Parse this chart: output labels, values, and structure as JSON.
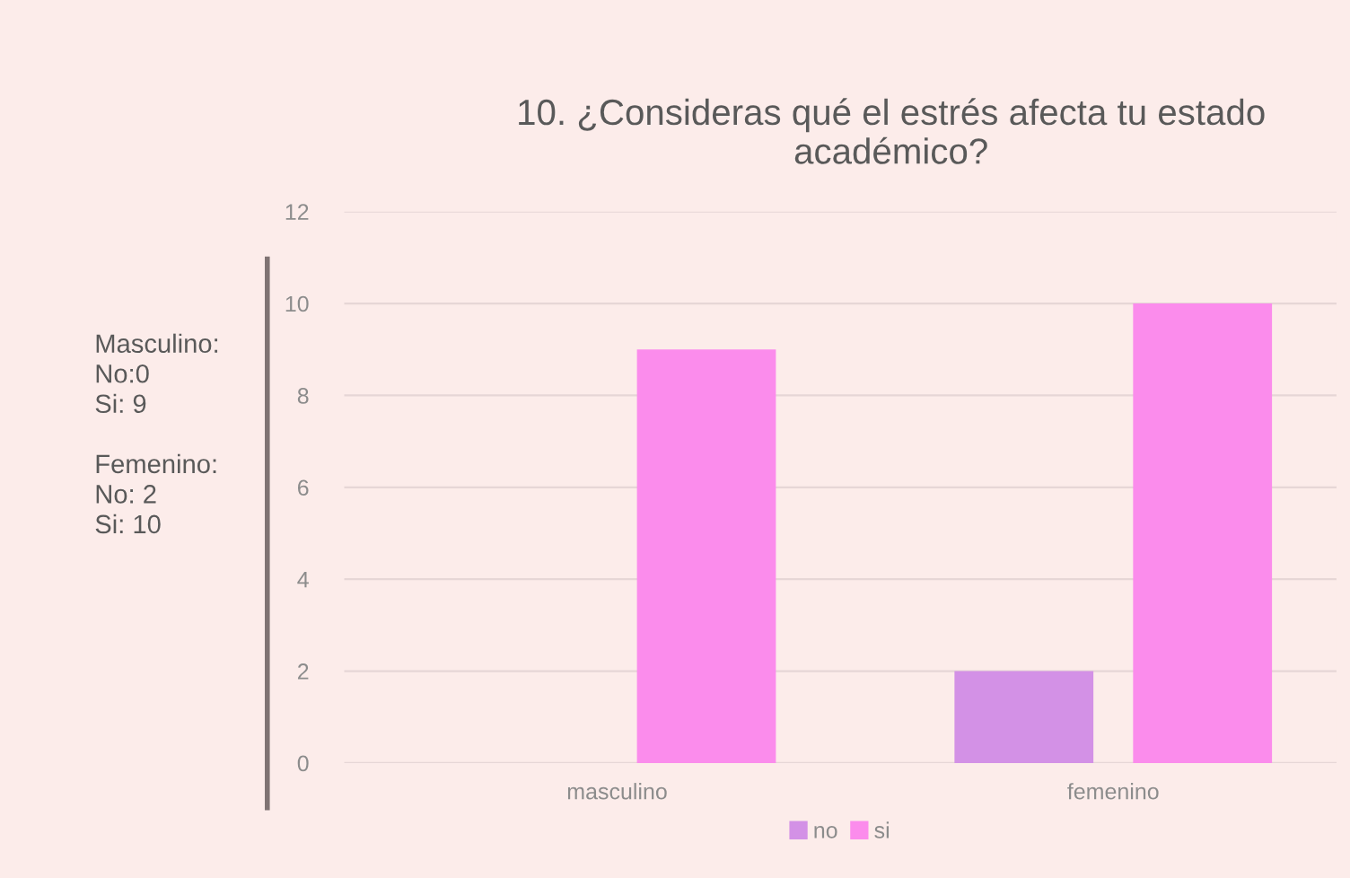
{
  "chart_data": {
    "type": "bar",
    "title": "10. ¿Consideras qué el estrés afecta tu estado\nacadémico?",
    "categories": [
      "masculino",
      "femenino"
    ],
    "series": [
      {
        "name": "no",
        "color": "#d391e6",
        "values": [
          0,
          2
        ]
      },
      {
        "name": "si",
        "color": "#fb8cec",
        "values": [
          9,
          10
        ]
      }
    ],
    "ylim": [
      0,
      12
    ],
    "yticks": [
      0,
      2,
      4,
      6,
      8,
      10,
      12
    ],
    "grid": "y",
    "legend": "bottom",
    "annotations": [
      "Masculino:\nNo:0\nSi: 9\n\nFemenino:\nNo: 2\nSi: 10"
    ]
  }
}
